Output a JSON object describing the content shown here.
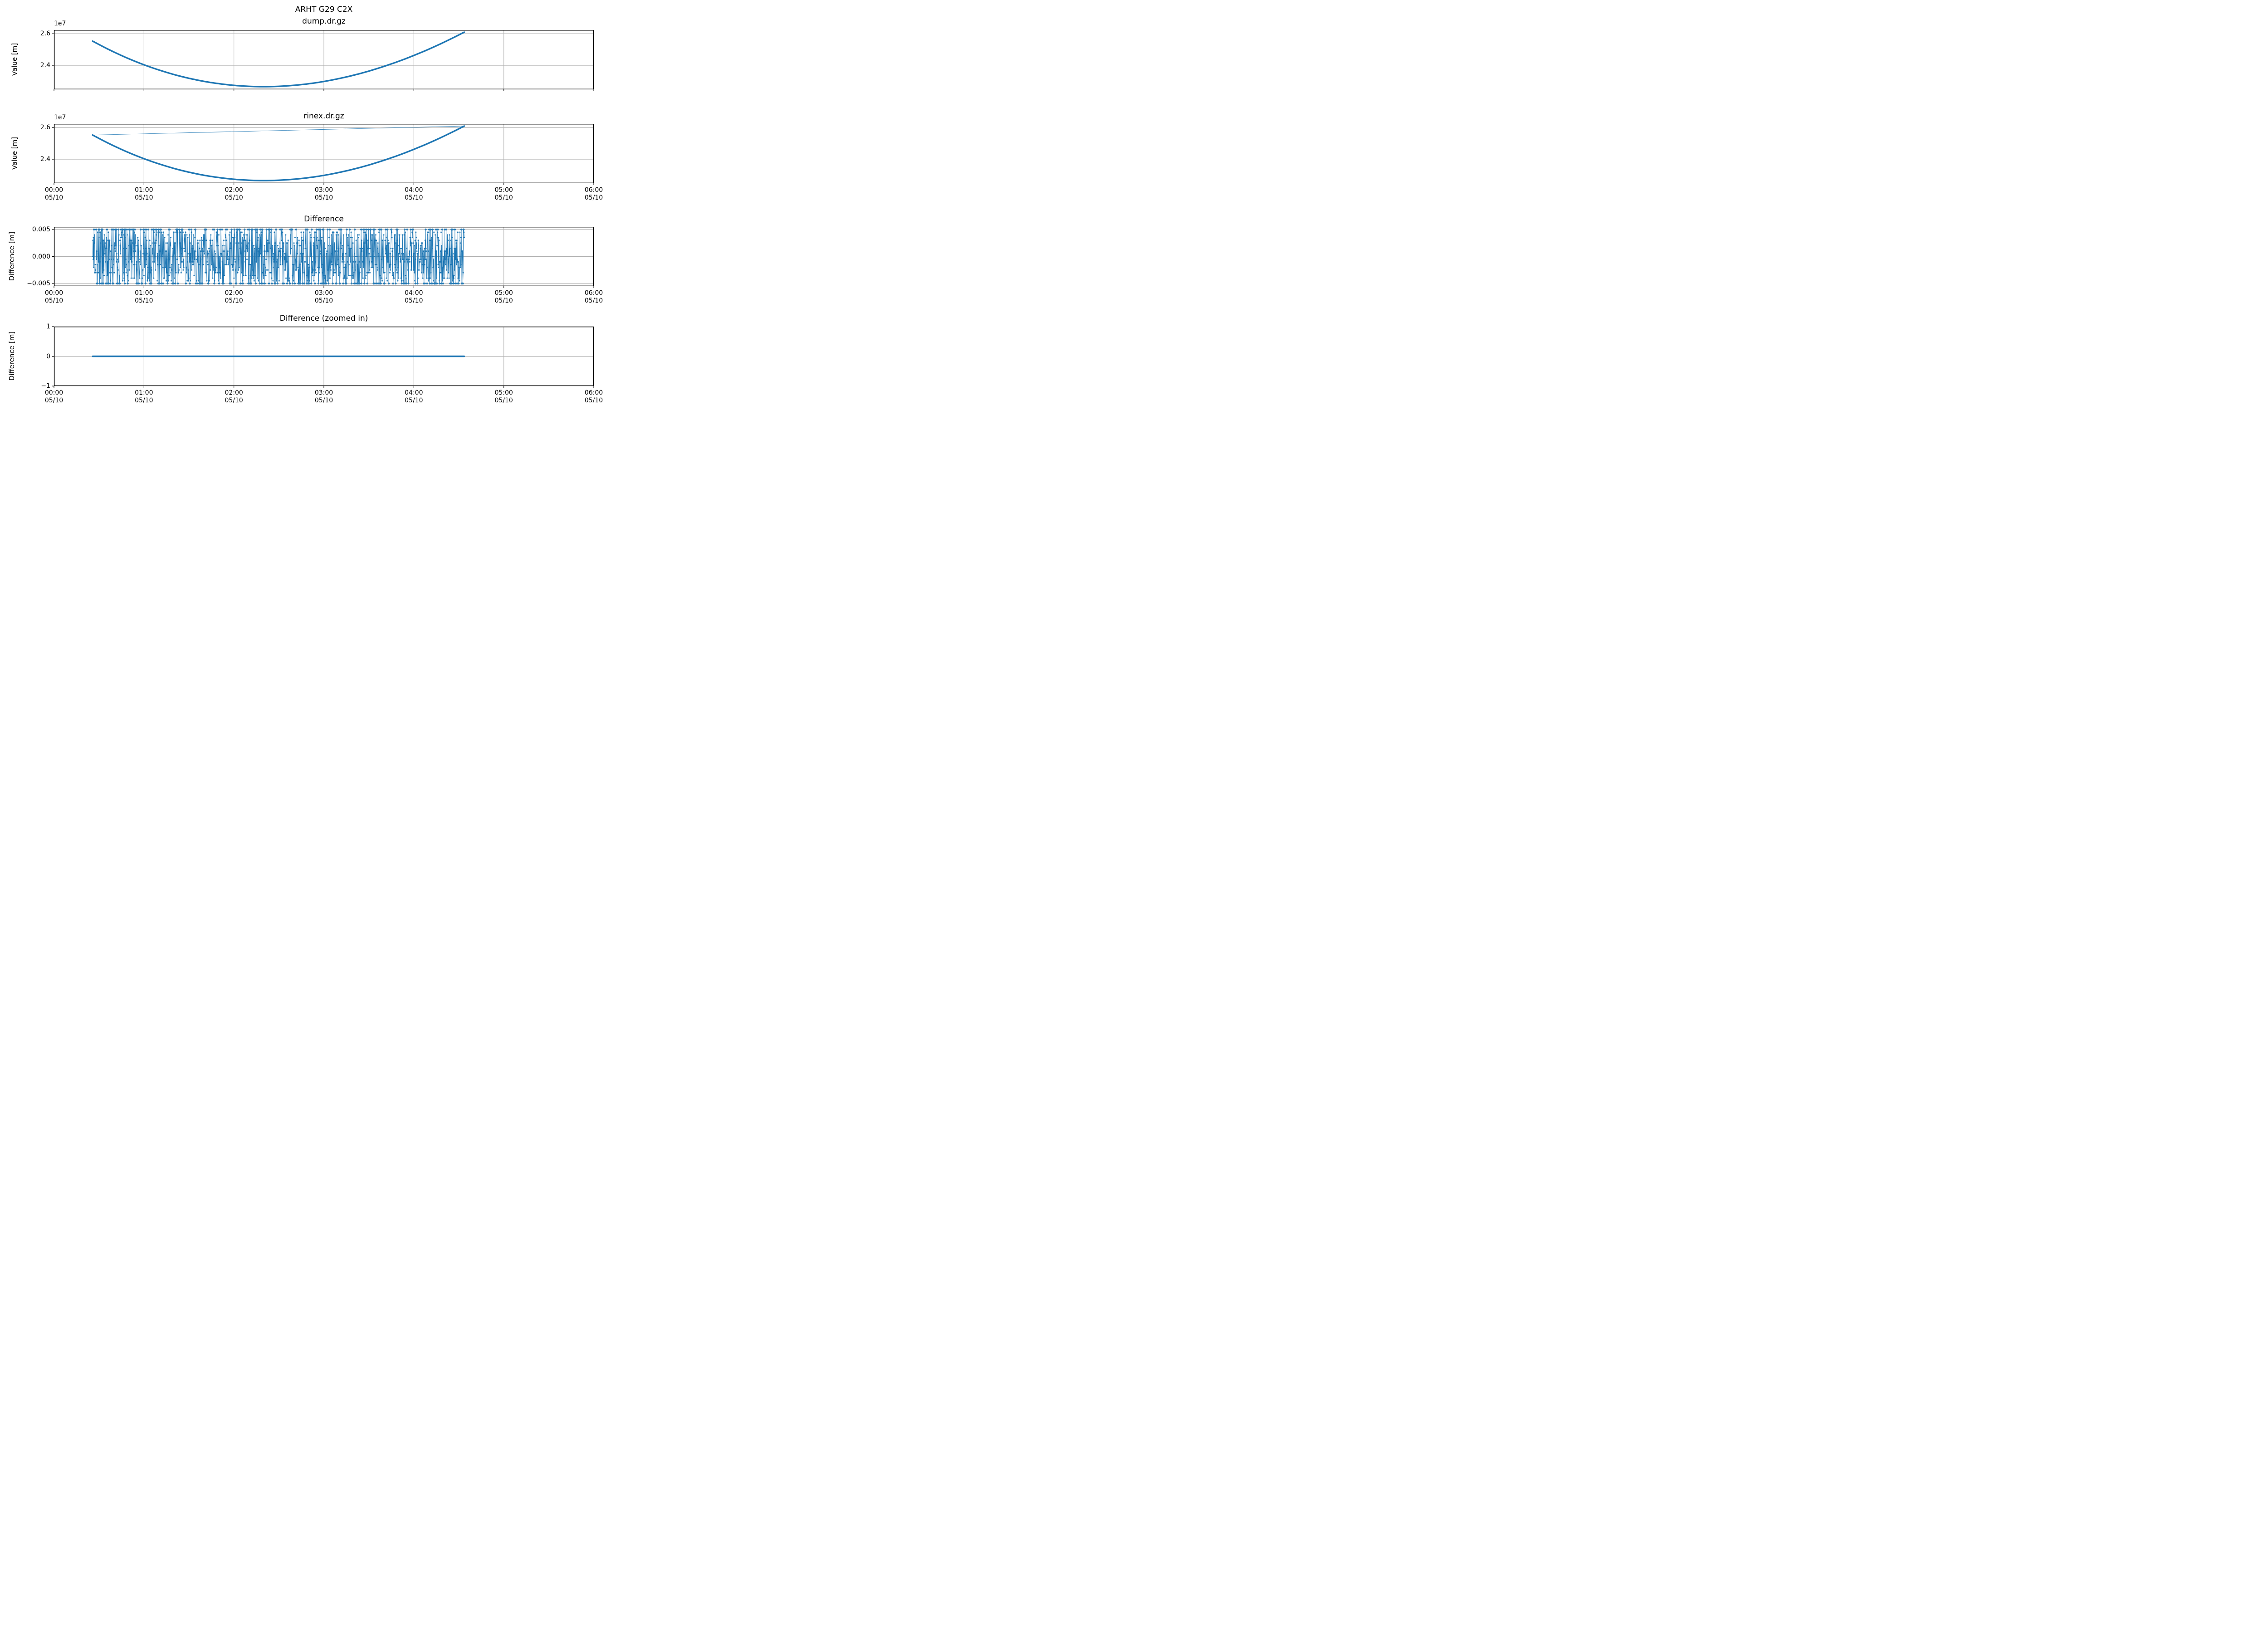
{
  "figure": {
    "background": "#ffffff",
    "accent_color": "#1f77b4",
    "grid_color": "#b0b0b0",
    "spine_color": "#000000",
    "text_color": "#000000"
  },
  "x_axis": {
    "tick_times": [
      "00:00",
      "01:00",
      "02:00",
      "03:00",
      "04:00",
      "05:00",
      "06:00"
    ],
    "tick_date": "05/10",
    "tick_hours": [
      0,
      1,
      2,
      3,
      4,
      5,
      6
    ]
  },
  "plots": [
    {
      "name": "dump",
      "title_line1": "ARHT G29 C2X",
      "title_line2": "dump.dr.gz",
      "ylabel": "Value [m]",
      "offset_text": "1e7",
      "ytick_labels": [
        "2.6",
        "2.4"
      ],
      "has_xtick_labels": false
    },
    {
      "name": "rinex",
      "title": "rinex.dr.gz",
      "ylabel": "Value [m]",
      "offset_text": "1e7",
      "ytick_labels": [
        "2.6",
        "2.4"
      ],
      "has_xtick_labels": true
    },
    {
      "name": "difference",
      "title": "Difference",
      "ylabel": "Difference [m]",
      "ytick_labels": [
        "0.005",
        "0.000",
        "−0.005"
      ],
      "has_xtick_labels": true
    },
    {
      "name": "difference-zoomed",
      "title": "Difference (zoomed in)",
      "ylabel": "Difference [m]",
      "ytick_labels": [
        "1",
        "0",
        "−1"
      ],
      "has_xtick_labels": true
    }
  ],
  "chart_data": [
    {
      "type": "line",
      "title": "ARHT G29 C2X\ndump.dr.gz",
      "xlabel": "",
      "ylabel": "Value [m]",
      "x_unit": "hours since 00:00 on 05/10",
      "xlim": [
        0,
        6
      ],
      "ylim": [
        22480000,
        26240000
      ],
      "yticks": [
        26000000,
        24000000
      ],
      "y_offset_factor": "1e7",
      "grid": true,
      "legend": false,
      "series": [
        {
          "name": "dump.dr.gz value",
          "color": "#1f77b4",
          "style": "thick-line",
          "points": [
            [
              0.43,
              25530000
            ],
            [
              0.6,
              25025000
            ],
            [
              0.8,
              24496000
            ],
            [
              1.0,
              24036000
            ],
            [
              1.2,
              23644000
            ],
            [
              1.4,
              23319000
            ],
            [
              1.6,
              23059000
            ],
            [
              1.8,
              22864000
            ],
            [
              2.0,
              22733000
            ],
            [
              2.2,
              22663000
            ],
            [
              2.33,
              22650000
            ],
            [
              2.5,
              22672000
            ],
            [
              2.7,
              22751000
            ],
            [
              2.9,
              22889000
            ],
            [
              3.1,
              23083000
            ],
            [
              3.3,
              23333000
            ],
            [
              3.5,
              23636000
            ],
            [
              3.7,
              23993000
            ],
            [
              3.9,
              24401000
            ],
            [
              4.1,
              24860000
            ],
            [
              4.3,
              25368000
            ],
            [
              4.45,
              25781000
            ],
            [
              4.56,
              26100000
            ]
          ]
        }
      ]
    },
    {
      "type": "line",
      "title": "rinex.dr.gz",
      "xlabel": "",
      "ylabel": "Value [m]",
      "x_unit": "hours since 00:00 on 05/10",
      "xlim": [
        0,
        6
      ],
      "ylim": [
        22480000,
        26240000
      ],
      "yticks": [
        26000000,
        24000000
      ],
      "y_offset_factor": "1e7",
      "grid": true,
      "legend": false,
      "series": [
        {
          "name": "rinex.dr.gz value",
          "color": "#1f77b4",
          "style": "thick-line",
          "points": [
            [
              0.43,
              25530000
            ],
            [
              0.6,
              25025000
            ],
            [
              0.8,
              24496000
            ],
            [
              1.0,
              24036000
            ],
            [
              1.2,
              23644000
            ],
            [
              1.4,
              23319000
            ],
            [
              1.6,
              23059000
            ],
            [
              1.8,
              22864000
            ],
            [
              2.0,
              22733000
            ],
            [
              2.2,
              22663000
            ],
            [
              2.33,
              22650000
            ],
            [
              2.5,
              22672000
            ],
            [
              2.7,
              22751000
            ],
            [
              2.9,
              22889000
            ],
            [
              3.1,
              23083000
            ],
            [
              3.3,
              23333000
            ],
            [
              3.5,
              23636000
            ],
            [
              3.7,
              23993000
            ],
            [
              3.9,
              24401000
            ],
            [
              4.1,
              24860000
            ],
            [
              4.3,
              25368000
            ],
            [
              4.45,
              25781000
            ],
            [
              4.56,
              26100000
            ]
          ]
        },
        {
          "name": "wrap-around segment",
          "color": "#1f77b4",
          "style": "thin-line",
          "points": [
            [
              0.43,
              25530000
            ],
            [
              4.56,
              26100000
            ]
          ]
        }
      ]
    },
    {
      "type": "line",
      "title": "Difference",
      "xlabel": "",
      "ylabel": "Difference [m]",
      "x_unit": "hours since 00:00 on 05/10",
      "xlim": [
        0,
        6
      ],
      "ylim": [
        -0.0055,
        0.0055
      ],
      "yticks": [
        0.005,
        0.0,
        -0.005
      ],
      "grid": true,
      "legend": false,
      "series": [
        {
          "name": "dump minus rinex difference",
          "color": "#1f77b4",
          "style": "line-with-dot-markers",
          "generated_noise": {
            "description": "dense quantized noise band filling ±0.005 m between start and end of data",
            "t_start": 0.43,
            "t_end": 4.56,
            "value_min": -0.005,
            "value_max": 0.005,
            "quantize_step": 0.0005,
            "n_points": 1400,
            "edge_bias": 0.14,
            "seed": 20240510
          }
        }
      ]
    },
    {
      "type": "line",
      "title": "Difference (zoomed in)",
      "xlabel": "",
      "ylabel": "Difference [m]",
      "x_unit": "hours since 00:00 on 05/10",
      "xlim": [
        0,
        6
      ],
      "ylim": [
        -1,
        1
      ],
      "yticks": [
        1,
        0,
        -1
      ],
      "grid": true,
      "legend": false,
      "series": [
        {
          "name": "dump minus rinex difference (zoomed out scale)",
          "color": "#1f77b4",
          "style": "thick-line",
          "points": [
            [
              0.43,
              0
            ],
            [
              4.56,
              0
            ]
          ]
        }
      ]
    }
  ]
}
